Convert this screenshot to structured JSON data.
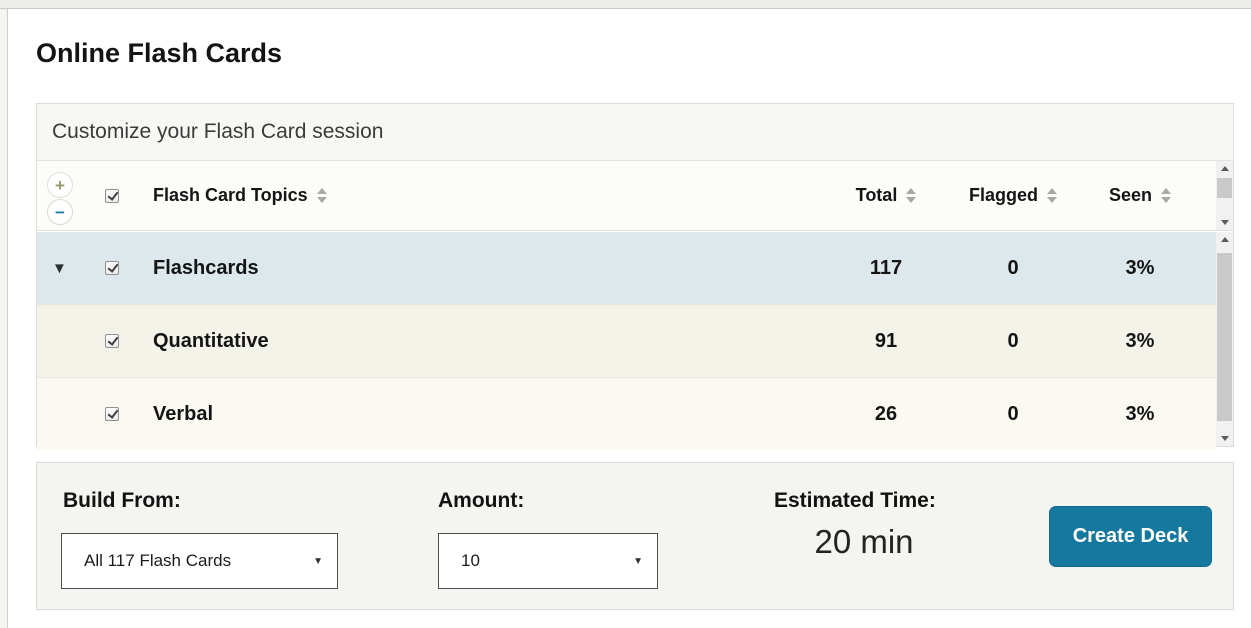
{
  "page": {
    "title": "Online Flash Cards"
  },
  "panel": {
    "heading": "Customize your Flash Card session",
    "table": {
      "columns": {
        "topic": "Flash Card Topics",
        "total": "Total",
        "flagged": "Flagged",
        "seen": "Seen"
      },
      "rows": [
        {
          "topic": "Flashcards",
          "total": "117",
          "flagged": "0",
          "seen": "3%",
          "checked": true,
          "expanded": true,
          "highlighted": true
        },
        {
          "topic": "Quantitative",
          "total": "91",
          "flagged": "0",
          "seen": "3%",
          "checked": true,
          "expanded": false,
          "highlighted": false
        },
        {
          "topic": "Verbal",
          "total": "26",
          "flagged": "0",
          "seen": "3%",
          "checked": true,
          "expanded": false,
          "highlighted": false
        }
      ]
    }
  },
  "builder": {
    "build_from_label": "Build From:",
    "build_from_value": "All 117 Flash Cards",
    "amount_label": "Amount:",
    "amount_value": "10",
    "estimated_time_label": "Estimated Time:",
    "estimated_time_value": "20 min",
    "create_deck_label": "Create Deck"
  },
  "icons": {
    "plus": "+",
    "minus": "−",
    "expander": "▼",
    "select_arrow": "▼"
  },
  "colors": {
    "accent": "#15799f",
    "row_highlight": "#dce8ec",
    "row_beige": "#f4f3ea",
    "row_beige_light": "#fbfaf2",
    "minus_icon": "#1c7f9f",
    "plus_icon": "#9a9a71"
  }
}
